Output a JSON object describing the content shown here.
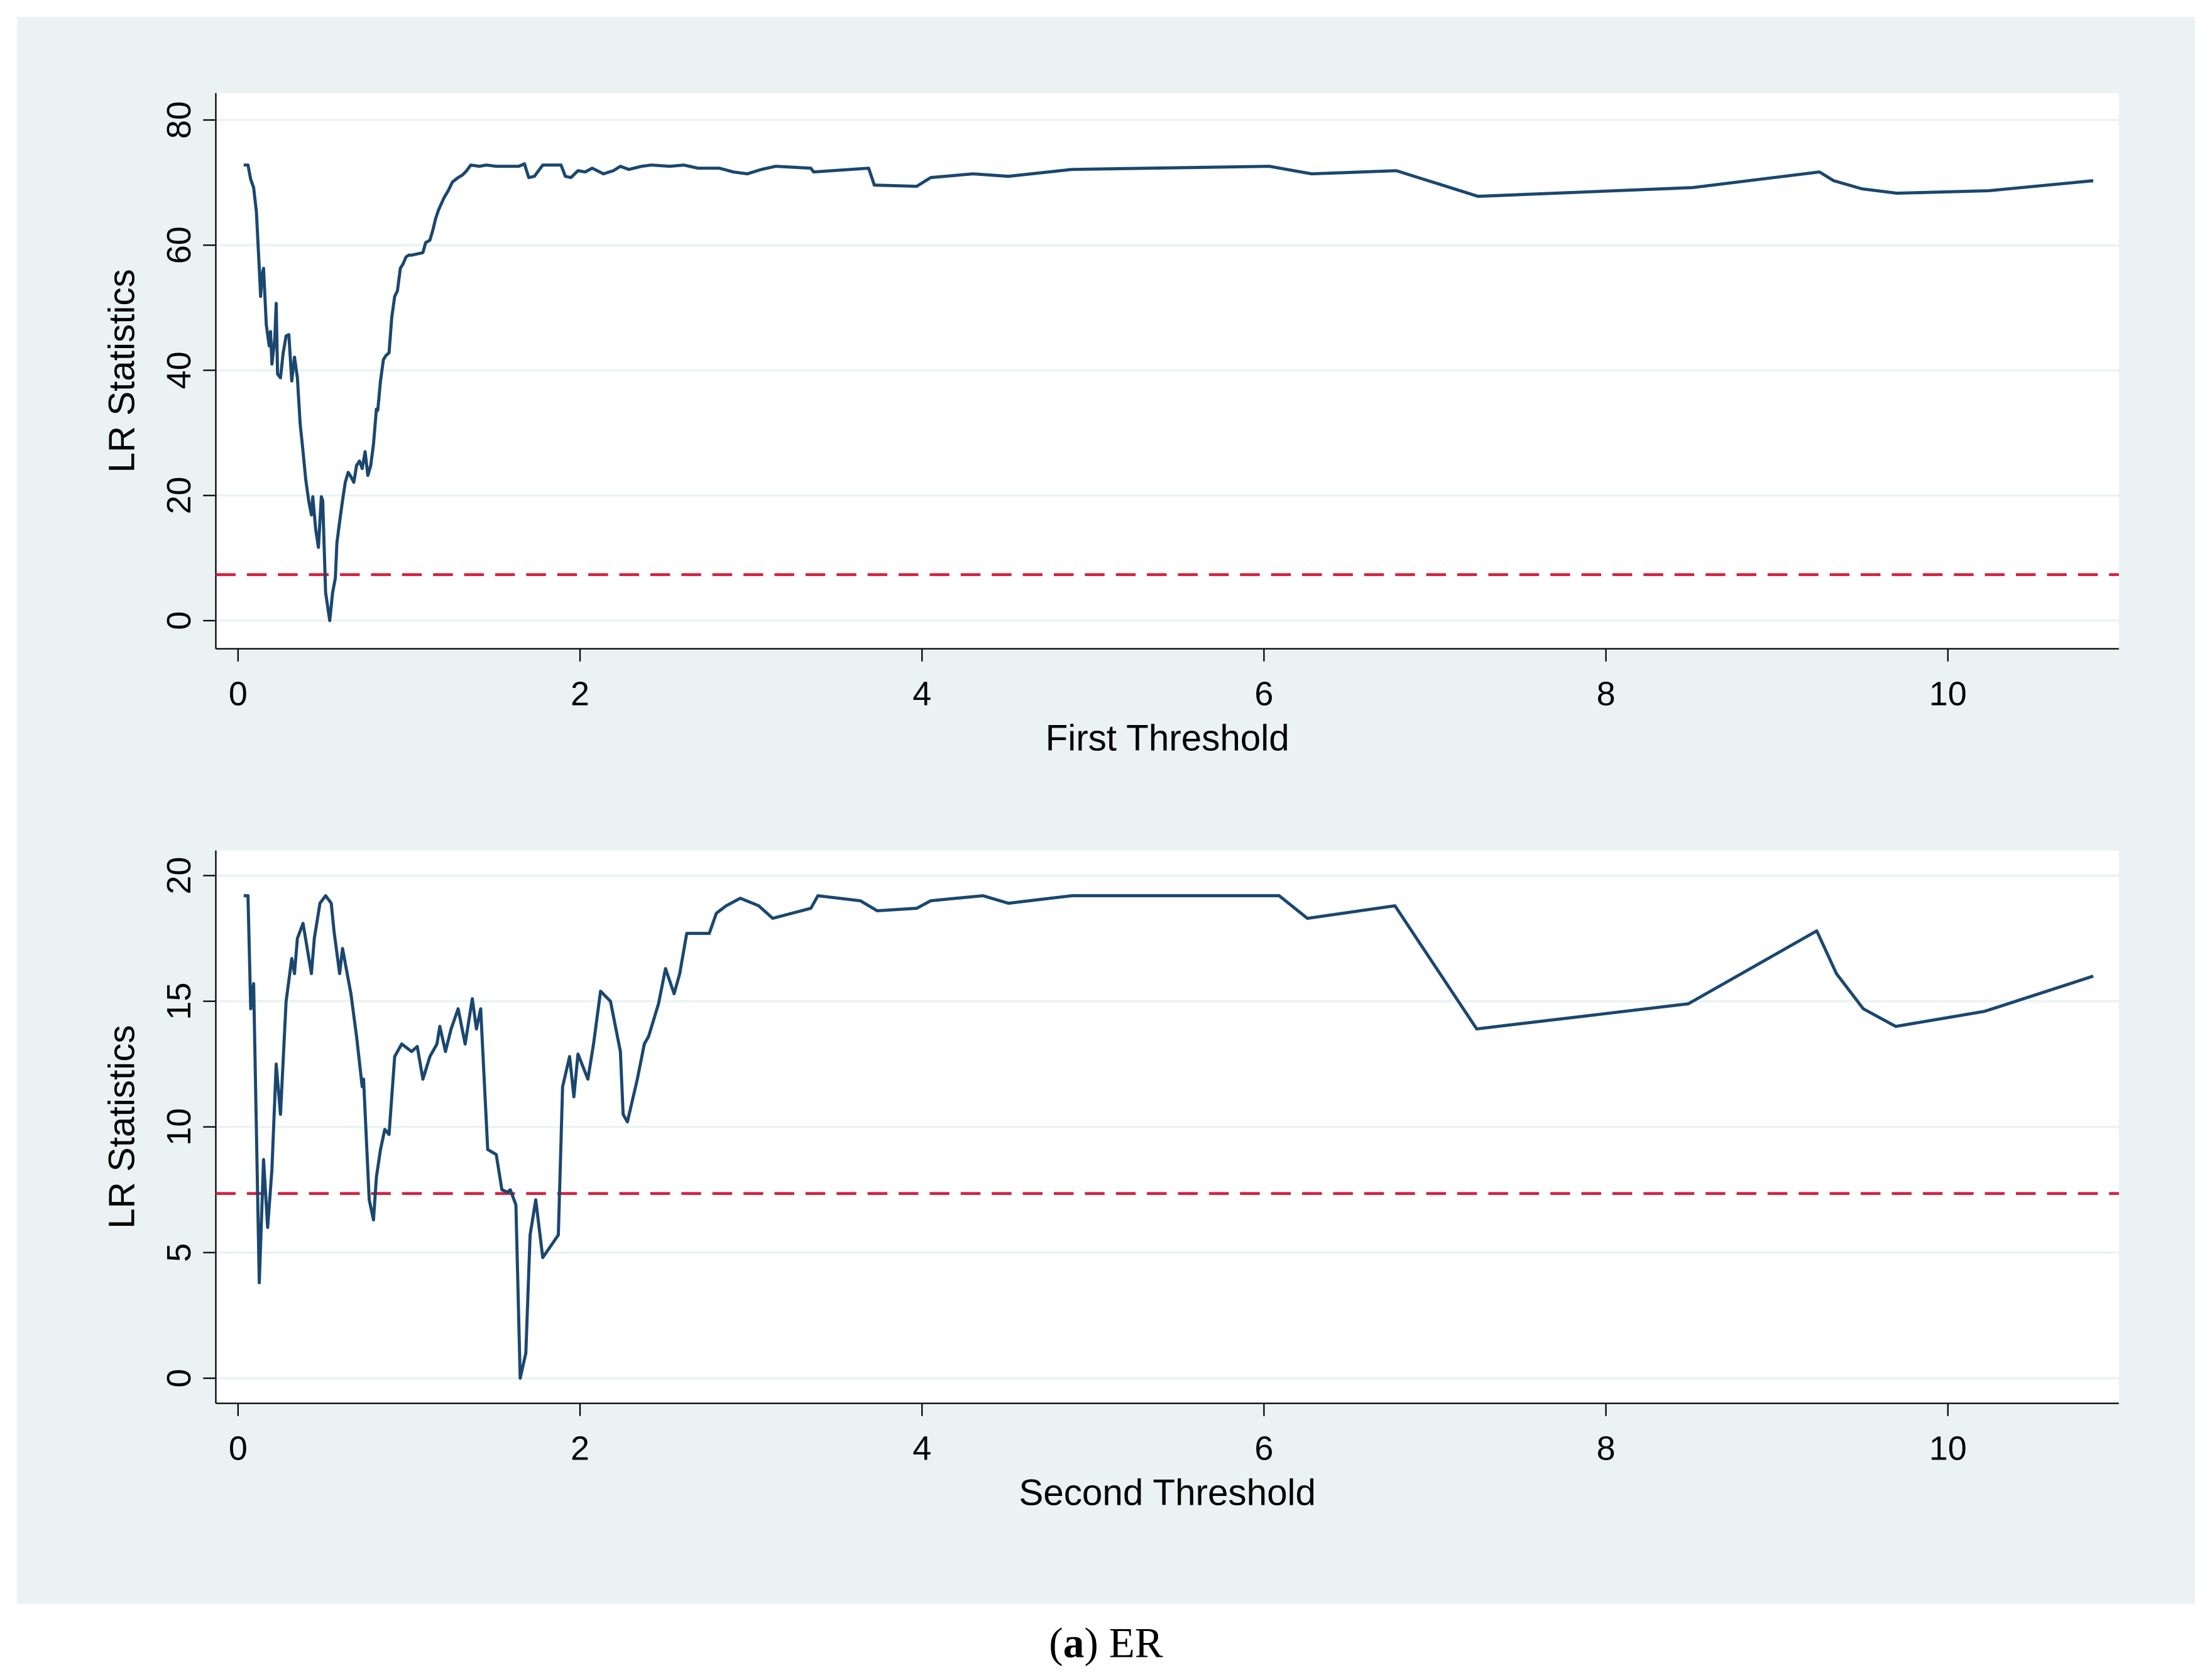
{
  "chart_data": [
    {
      "type": "line",
      "ylabel": "LR Statistics",
      "xlabel": "First Threshold",
      "xlim": [
        -0.13,
        11.0
      ],
      "ylim": [
        -4.5,
        84.3
      ],
      "xticks": [
        0,
        2,
        4,
        6,
        8,
        10
      ],
      "yticks": [
        0,
        20,
        40,
        60,
        80
      ],
      "grid": true,
      "color": "#1a476f",
      "hline": {
        "y": 7.35,
        "color": "#d41f3d",
        "dashed": true
      },
      "x": [
        0.033,
        0.058,
        0.074,
        0.091,
        0.107,
        0.124,
        0.132,
        0.14,
        0.149,
        0.165,
        0.182,
        0.19,
        0.198,
        0.215,
        0.223,
        0.231,
        0.248,
        0.264,
        0.281,
        0.297,
        0.314,
        0.33,
        0.347,
        0.363,
        0.38,
        0.396,
        0.413,
        0.429,
        0.437,
        0.454,
        0.47,
        0.487,
        0.495,
        0.512,
        0.536,
        0.553,
        0.569,
        0.578,
        0.594,
        0.611,
        0.627,
        0.644,
        0.66,
        0.677,
        0.693,
        0.71,
        0.726,
        0.743,
        0.759,
        0.776,
        0.792,
        0.809,
        0.817,
        0.833,
        0.85,
        0.866,
        0.883,
        0.899,
        0.916,
        0.932,
        0.949,
        0.965,
        0.982,
        0.998,
        1.015,
        1.048,
        1.081,
        1.097,
        1.122,
        1.139,
        1.155,
        1.172,
        1.205,
        1.229,
        1.254,
        1.287,
        1.312,
        1.337,
        1.361,
        1.411,
        1.452,
        1.51,
        1.576,
        1.642,
        1.675,
        1.7,
        1.733,
        1.782,
        1.848,
        1.889,
        1.914,
        1.947,
        1.988,
        2.03,
        2.071,
        2.137,
        2.195,
        2.236,
        2.285,
        2.36,
        2.417,
        2.525,
        2.607,
        2.69,
        2.814,
        2.896,
        2.979,
        3.061,
        3.144,
        3.35,
        3.366,
        3.474,
        3.688,
        3.721,
        3.969,
        4.051,
        4.299,
        4.505,
        4.876,
        6.031,
        6.279,
        6.774,
        7.252,
        8.507,
        9.249,
        9.332,
        9.497,
        9.703,
        10.239,
        10.85
      ],
      "values": [
        72.8,
        72.8,
        70.5,
        69.2,
        65.4,
        56.3,
        51.8,
        55.2,
        56.3,
        47.3,
        43.9,
        46.2,
        41.0,
        45.1,
        50.7,
        39.4,
        38.8,
        42.8,
        45.5,
        45.7,
        38.3,
        42.1,
        38.8,
        31.5,
        27.0,
        22.5,
        19.2,
        16.9,
        19.8,
        14.6,
        11.7,
        19.8,
        19.2,
        4.5,
        0.0,
        4.5,
        6.8,
        12.4,
        15.8,
        19.2,
        22.1,
        23.7,
        23.0,
        22.1,
        24.8,
        25.5,
        24.3,
        27.0,
        23.2,
        24.8,
        28.2,
        33.8,
        33.6,
        38.3,
        41.7,
        42.4,
        42.8,
        48.5,
        51.8,
        52.7,
        56.3,
        57.0,
        58.1,
        58.4,
        58.4,
        58.6,
        58.8,
        60.4,
        60.8,
        62.4,
        64.2,
        65.6,
        67.6,
        68.7,
        70.1,
        70.8,
        71.2,
        71.9,
        72.8,
        72.6,
        72.8,
        72.6,
        72.6,
        72.6,
        73.0,
        70.8,
        71.0,
        72.8,
        72.8,
        72.8,
        71.0,
        70.8,
        71.9,
        71.7,
        72.3,
        71.4,
        71.9,
        72.6,
        72.1,
        72.6,
        72.8,
        72.6,
        72.8,
        72.3,
        72.3,
        71.7,
        71.4,
        72.1,
        72.6,
        72.3,
        71.7,
        71.9,
        72.3,
        69.6,
        69.4,
        70.8,
        71.4,
        71.0,
        72.1,
        72.6,
        71.4,
        71.9,
        67.8,
        69.2,
        71.7,
        70.3,
        69.0,
        68.3,
        68.7,
        70.3
      ]
    },
    {
      "type": "line",
      "ylabel": "LR Statistics",
      "xlabel": "Second Threshold",
      "xlim": [
        -0.13,
        11.0
      ],
      "ylim": [
        -1.0,
        21.0
      ],
      "xticks": [
        0,
        2,
        4,
        6,
        8,
        10
      ],
      "yticks": [
        0,
        5,
        10,
        15,
        20
      ],
      "grid": true,
      "color": "#1a476f",
      "hline": {
        "y": 7.35,
        "color": "#d41f3d",
        "dashed": true
      },
      "x": [
        0.033,
        0.058,
        0.074,
        0.091,
        0.124,
        0.149,
        0.173,
        0.198,
        0.223,
        0.248,
        0.281,
        0.314,
        0.33,
        0.347,
        0.38,
        0.429,
        0.446,
        0.479,
        0.512,
        0.545,
        0.561,
        0.594,
        0.611,
        0.66,
        0.693,
        0.726,
        0.734,
        0.767,
        0.792,
        0.809,
        0.833,
        0.858,
        0.883,
        0.916,
        0.957,
        1.015,
        1.048,
        1.081,
        1.122,
        1.163,
        1.18,
        1.213,
        1.246,
        1.287,
        1.328,
        1.37,
        1.394,
        1.419,
        1.46,
        1.51,
        1.543,
        1.576,
        1.592,
        1.625,
        1.65,
        1.683,
        1.708,
        1.741,
        1.782,
        1.873,
        1.898,
        1.939,
        1.964,
        1.988,
        2.046,
        2.079,
        2.12,
        2.178,
        2.236,
        2.252,
        2.277,
        2.335,
        2.376,
        2.401,
        2.459,
        2.5,
        2.55,
        2.583,
        2.624,
        2.756,
        2.797,
        2.855,
        2.937,
        3.045,
        3.127,
        3.35,
        3.391,
        3.639,
        3.738,
        3.969,
        4.051,
        4.356,
        4.505,
        4.876,
        6.031,
        6.089,
        6.254,
        6.766,
        7.244,
        8.482,
        9.233,
        9.348,
        9.505,
        9.695,
        10.215,
        10.85
      ],
      "values": [
        19.2,
        19.2,
        14.7,
        15.7,
        3.8,
        8.7,
        6.0,
        8.3,
        12.5,
        10.5,
        15.0,
        16.7,
        16.1,
        17.5,
        18.1,
        16.1,
        17.5,
        18.9,
        19.2,
        18.9,
        17.8,
        16.1,
        17.1,
        15.3,
        13.6,
        11.6,
        11.9,
        7.1,
        6.3,
        8.0,
        9.1,
        9.9,
        9.7,
        12.8,
        13.3,
        13.0,
        13.2,
        11.9,
        12.8,
        13.3,
        14.0,
        13.0,
        13.9,
        14.7,
        13.3,
        15.1,
        13.9,
        14.7,
        9.1,
        8.9,
        7.5,
        7.4,
        7.5,
        6.9,
        0.0,
        1.0,
        5.7,
        7.1,
        4.8,
        5.7,
        11.6,
        12.8,
        11.2,
        12.9,
        11.9,
        13.3,
        15.4,
        15.0,
        13.0,
        10.5,
        10.2,
        11.9,
        13.3,
        13.6,
        14.9,
        16.3,
        15.3,
        16.1,
        17.7,
        17.7,
        18.5,
        18.8,
        19.1,
        18.8,
        18.3,
        18.7,
        19.2,
        19.0,
        18.6,
        18.7,
        19.0,
        19.2,
        18.9,
        19.2,
        19.2,
        19.2,
        18.3,
        18.8,
        13.9,
        14.9,
        17.8,
        16.1,
        14.7,
        14.0,
        14.6,
        16.0
      ]
    }
  ],
  "caption": {
    "prefix": "(",
    "label": "a",
    "text": ") ER"
  }
}
